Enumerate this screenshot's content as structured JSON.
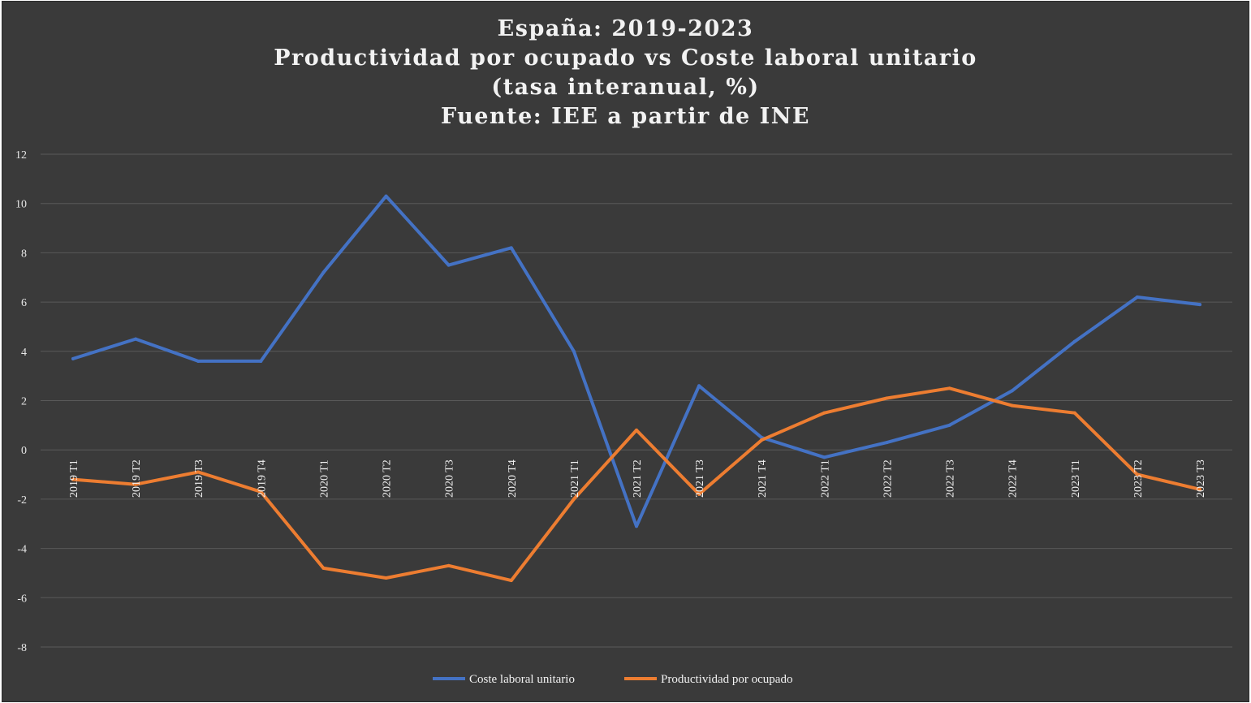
{
  "chart_data": {
    "type": "line",
    "title_lines": [
      "España: 2019-2023",
      "Productividad por ocupado vs Coste laboral unitario",
      "(tasa interanual, %)",
      "Fuente: IEE a partir de INE"
    ],
    "categories": [
      "2019 T1",
      "2019 T2",
      "2019 T3",
      "2019 T4",
      "2020 T1",
      "2020 T2",
      "2020 T3",
      "2020 T4",
      "2021 T1",
      "2021 T2",
      "2021 T3",
      "2021 T4",
      "2022 T1",
      "2022 T2",
      "2022 T3",
      "2022 T4",
      "2023 T1",
      "2023 T2",
      "2023 T3"
    ],
    "series": [
      {
        "name": "Coste laboral unitario",
        "color": "#4472c4",
        "values": [
          3.7,
          4.5,
          3.6,
          3.6,
          7.2,
          10.3,
          7.5,
          8.2,
          4.0,
          -3.1,
          2.6,
          0.5,
          -0.3,
          0.3,
          1.0,
          2.4,
          4.4,
          6.2,
          5.9
        ]
      },
      {
        "name": "Productividad por ocupado",
        "color": "#ed7d31",
        "values": [
          -1.2,
          -1.4,
          -0.9,
          -1.7,
          -4.8,
          -5.2,
          -4.7,
          -5.3,
          -2.0,
          0.8,
          -1.8,
          0.4,
          1.5,
          2.1,
          2.5,
          1.8,
          1.5,
          -1.0,
          -1.6
        ]
      }
    ],
    "ylim": [
      -8,
      12
    ],
    "yticks": [
      -8,
      -6,
      -4,
      -2,
      0,
      2,
      4,
      6,
      8,
      10,
      12
    ],
    "grid": true,
    "legend_position": "bottom"
  }
}
